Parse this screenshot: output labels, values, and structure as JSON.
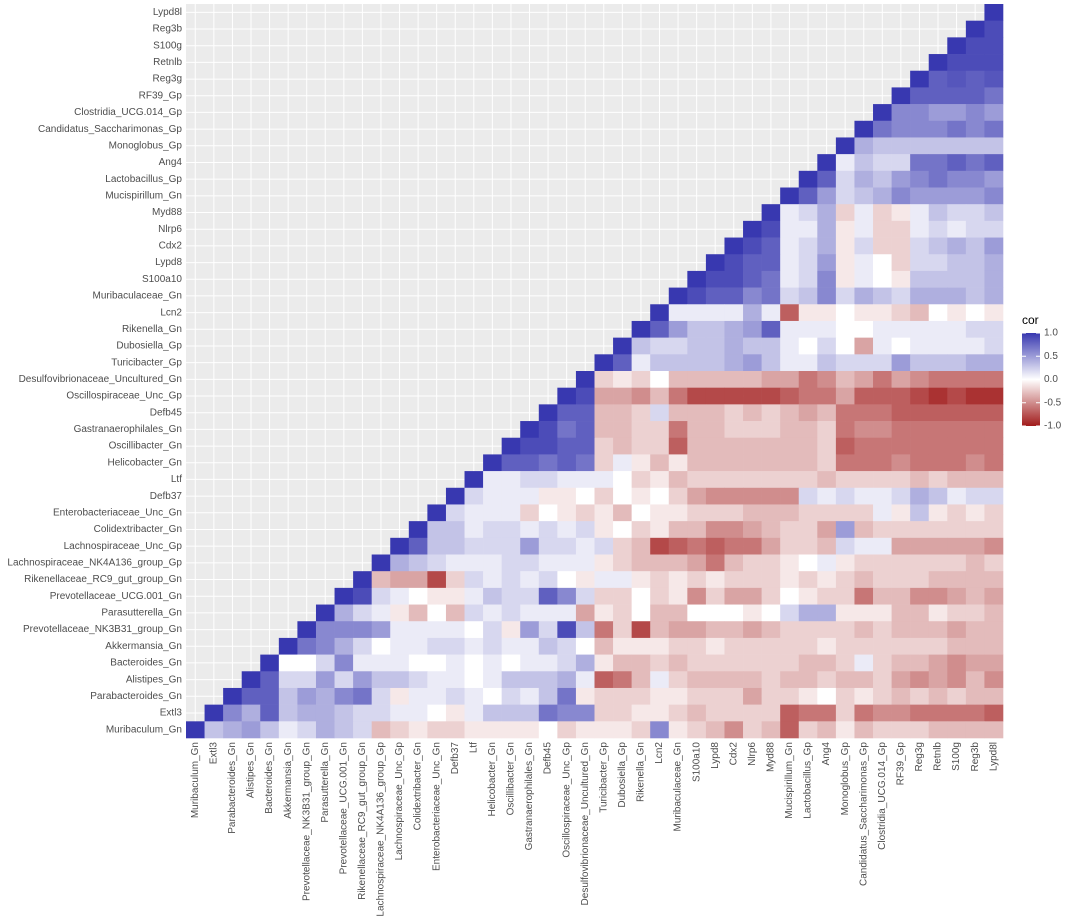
{
  "chart_data": {
    "type": "heatmap",
    "legend_title": "cor",
    "colors": {
      "low": "#a11b1b",
      "mid": "#ffffff",
      "high": "#3838b0"
    },
    "zlim": [
      -1,
      1
    ],
    "zticks": [
      {
        "value": -1,
        "label": "-1.0"
      },
      {
        "value": -0.5,
        "label": "-0.5"
      },
      {
        "value": 0,
        "label": "0.0"
      },
      {
        "value": 0.5,
        "label": "0.5"
      },
      {
        "value": 1,
        "label": "1.0"
      }
    ],
    "rows": [
      "Lypd8l",
      "Reg3b",
      "S100g",
      "Retnlb",
      "Reg3g",
      "RF39_Gp",
      "Clostridia_UCG.014_Gp",
      "Candidatus_Saccharimonas_Gp",
      "Monoglobus_Gp",
      "Ang4",
      "Lactobacillus_Gp",
      "Mucispirillum_Gn",
      "Myd88",
      "Nlrp6",
      "Cdx2",
      "Lypd8",
      "S100a10",
      "Muribaculaceae_Gn",
      "Lcn2",
      "Rikenella_Gn",
      "Dubosiella_Gp",
      "Turicibacter_Gp",
      "Desulfovibrionaceae_Uncultured_Gn",
      "Oscillospiraceae_Unc_Gp",
      "Defb45",
      "Gastranaerophilales_Gn",
      "Oscillibacter_Gn",
      "Helicobacter_Gn",
      "Ltf",
      "Defb37",
      "Enterobacteriaceae_Unc_Gn",
      "Colidextribacter_Gn",
      "Lachnospiraceae_Unc_Gp",
      "Lachnospiraceae_NK4A136_group_Gp",
      "Rikenellaceae_RC9_gut_group_Gn",
      "Prevotellaceae_UCG.001_Gn",
      "Parasutterella_Gn",
      "Prevotellaceae_NK3B31_group_Gn",
      "Akkermansia_Gn",
      "Bacteroides_Gn",
      "Alistipes_Gn",
      "Parabacteroides_Gn",
      "Extl3",
      "Muribaculum_Gn"
    ],
    "columns": [
      "Muribaculum_Gn",
      "Extl3",
      "Parabacteroides_Gn",
      "Alistipes_Gn",
      "Bacteroides_Gn",
      "Akkermansia_Gn",
      "Prevotellaceae_NK3B31_group_Gn",
      "Parasutterella_Gn",
      "Prevotellaceae_UCG.001_Gn",
      "Rikenellaceae_RC9_gut_group_Gn",
      "Lachnospiraceae_NK4A136_group_Gp",
      "Lachnospiraceae_Unc_Gp",
      "Colidextribacter_Gn",
      "Enterobacteriaceae_Unc_Gn",
      "Defb37",
      "Ltf",
      "Helicobacter_Gn",
      "Oscillibacter_Gn",
      "Gastranaerophilales_Gn",
      "Defb45",
      "Oscillospiraceae_Unc_Gp",
      "Desulfovibrionaceae_Uncultured_Gn",
      "Turicibacter_Gp",
      "Dubosiella_Gp",
      "Rikenella_Gn",
      "Lcn2",
      "Muribaculaceae_Gn",
      "S100a10",
      "Lypd8",
      "Cdx2",
      "Nlrp6",
      "Myd88",
      "Mucispirillum_Gn",
      "Lactobacillus_Gp",
      "Ang4",
      "Monoglobus_Gp",
      "Candidatus_Saccharimonas_Gp",
      "Clostridia_UCG.014_Gp",
      "RF39_Gp",
      "Reg3g",
      "Retnlb",
      "S100g",
      "Reg3b",
      "Lypd8l"
    ],
    "values": [
      [
        1
      ],
      [
        1,
        0.9
      ],
      [
        1,
        0.9,
        0.9
      ],
      [
        1,
        0.9,
        0.9,
        0.9
      ],
      [
        1,
        0.8,
        0.85,
        0.8,
        0.85
      ],
      [
        1,
        0.8,
        0.8,
        0.8,
        0.8,
        0.7
      ],
      [
        1,
        0.6,
        0.6,
        0.5,
        0.5,
        0.6,
        0.5
      ],
      [
        1,
        0.7,
        0.6,
        0.6,
        0.6,
        0.7,
        0.6,
        0.7
      ],
      [
        1,
        0.4,
        0.3,
        0.3,
        0.3,
        0.3,
        0.3,
        0.3,
        0.3
      ],
      [
        1,
        0.1,
        0.3,
        0.2,
        0.2,
        0.7,
        0.7,
        0.8,
        0.7,
        0.8
      ],
      [
        1,
        0.8,
        0.2,
        0.4,
        0.3,
        0.5,
        0.6,
        0.7,
        0.6,
        0.6,
        0.5
      ],
      [
        1,
        0.8,
        0.5,
        0.2,
        0.3,
        0.4,
        0.6,
        0.5,
        0.5,
        0.5,
        0.5,
        0.6
      ],
      [
        1,
        0.1,
        0.2,
        0.4,
        -0.2,
        0.1,
        -0.2,
        -0.1,
        0.1,
        0.3,
        0.2,
        0.2,
        0.3
      ],
      [
        1,
        0.9,
        0.1,
        0.1,
        0.4,
        -0.1,
        0.1,
        -0.2,
        -0.2,
        0.1,
        0.2,
        0.1,
        0.2,
        0.2
      ],
      [
        1,
        0.9,
        0.8,
        0.1,
        0.2,
        0.4,
        -0.1,
        0.2,
        -0.2,
        -0.2,
        0.2,
        0.3,
        0.4,
        0.3,
        0.5
      ],
      [
        1,
        0.9,
        0.8,
        0.8,
        0.1,
        0.2,
        0.5,
        -0.1,
        0.1,
        0,
        -0.2,
        0.2,
        0.2,
        0.3,
        0.3,
        0.4
      ],
      [
        1,
        0.9,
        0.9,
        0.8,
        0.7,
        0.1,
        0.2,
        0.6,
        -0.1,
        0.1,
        0,
        -0.1,
        0.3,
        0.3,
        0.3,
        0.3,
        0.4
      ],
      [
        1,
        0.9,
        0.8,
        0.8,
        0.6,
        0.7,
        0.2,
        0.3,
        0.6,
        0.2,
        0.4,
        0.3,
        0.2,
        0.4,
        0.4,
        0.4,
        0.3,
        0.4
      ],
      [
        1,
        0.1,
        0.1,
        0.1,
        0.1,
        0.4,
        0.1,
        -0.7,
        -0.1,
        -0.1,
        0,
        -0.1,
        -0.1,
        -0.2,
        -0.3,
        0,
        -0.1,
        0,
        -0.1
      ],
      [
        1,
        0.8,
        0.5,
        0.3,
        0.3,
        0.4,
        0.5,
        0.8,
        0.1,
        0.1,
        0.1,
        0,
        0,
        0.1,
        0.1,
        0.1,
        0.1,
        0.1,
        0.2,
        0.2
      ],
      [
        1,
        0.3,
        0.2,
        0.2,
        0.3,
        0.3,
        0.4,
        0.3,
        0.3,
        0.1,
        0,
        0.2,
        0,
        -0.4,
        0.1,
        0,
        0.1,
        0.1,
        0.1,
        0.1,
        0.2
      ],
      [
        1,
        0.8,
        0.1,
        0.3,
        0.3,
        0.3,
        0.3,
        0.4,
        0.5,
        0.3,
        0.1,
        0.1,
        0.3,
        0.2,
        0.2,
        0.2,
        0.5,
        0.3,
        0.3,
        0.3,
        0.4,
        0.4
      ],
      [
        1,
        -0.2,
        -0.1,
        -0.2,
        0,
        -0.3,
        -0.3,
        -0.3,
        -0.3,
        -0.3,
        -0.4,
        -0.4,
        -0.6,
        -0.5,
        -0.3,
        -0.4,
        -0.6,
        -0.4,
        -0.5,
        -0.6,
        -0.6,
        -0.6,
        -0.6
      ],
      [
        1,
        0.9,
        -0.4,
        -0.4,
        -0.5,
        -0.3,
        -0.6,
        -0.8,
        -0.8,
        -0.8,
        -0.8,
        -0.8,
        -0.7,
        -0.6,
        -0.6,
        -0.4,
        -0.7,
        -0.7,
        -0.7,
        -0.8,
        -0.9,
        -0.8,
        -0.9,
        -0.9
      ],
      [
        1,
        0.8,
        0.8,
        -0.3,
        -0.3,
        -0.2,
        0.2,
        -0.3,
        -0.3,
        -0.3,
        -0.2,
        -0.3,
        -0.2,
        -0.3,
        -0.4,
        -0.3,
        -0.6,
        -0.6,
        -0.6,
        -0.7,
        -0.7,
        -0.7,
        -0.7,
        -0.7,
        -0.7
      ],
      [
        1,
        0.9,
        0.7,
        0.8,
        -0.3,
        -0.3,
        -0.2,
        -0.2,
        -0.6,
        -0.3,
        -0.3,
        -0.2,
        -0.2,
        -0.2,
        -0.3,
        -0.3,
        -0.2,
        -0.6,
        -0.5,
        -0.5,
        -0.6,
        -0.6,
        -0.6,
        -0.6,
        -0.6,
        -0.6
      ],
      [
        1,
        0.9,
        0.9,
        0.8,
        0.8,
        -0.2,
        -0.3,
        -0.2,
        -0.2,
        -0.7,
        -0.3,
        -0.3,
        -0.3,
        -0.3,
        -0.3,
        -0.3,
        -0.3,
        -0.2,
        -0.7,
        -0.6,
        -0.6,
        -0.6,
        -0.6,
        -0.6,
        -0.6,
        -0.6,
        -0.6
      ],
      [
        1,
        0.8,
        0.8,
        0.7,
        0.8,
        0.7,
        -0.2,
        0.1,
        -0.1,
        -0.3,
        -0.1,
        -0.3,
        -0.3,
        -0.3,
        -0.3,
        -0.3,
        -0.3,
        -0.3,
        -0.2,
        -0.6,
        -0.6,
        -0.6,
        -0.5,
        -0.6,
        -0.6,
        -0.6,
        -0.5,
        -0.6
      ],
      [
        1,
        0.1,
        0.1,
        0.2,
        0.2,
        0.1,
        0.1,
        0.1,
        0,
        -0.2,
        -0.1,
        -0.3,
        -0.2,
        -0.2,
        -0.2,
        -0.2,
        -0.2,
        -0.2,
        -0.2,
        -0.3,
        -0.2,
        -0.2,
        -0.2,
        -0.2,
        -0.3,
        -0.2,
        -0.3,
        -0.3,
        -0.3
      ],
      [
        1,
        0.2,
        0.1,
        0.1,
        0.1,
        -0.1,
        -0.1,
        0,
        -0.2,
        0,
        -0.1,
        0,
        -0.2,
        -0.4,
        -0.5,
        -0.5,
        -0.5,
        -0.5,
        -0.5,
        0.2,
        0.1,
        0.2,
        0.1,
        0.1,
        0.2,
        0.4,
        0.3,
        0.1,
        0.2,
        0.2
      ],
      [
        1,
        0.2,
        0.1,
        0.1,
        0.1,
        -0.2,
        0,
        -0.1,
        -0.2,
        -0.1,
        -0.3,
        0,
        -0.1,
        -0.1,
        -0.2,
        -0.2,
        -0.2,
        -0.3,
        -0.3,
        -0.3,
        -0.2,
        -0.2,
        -0.2,
        -0.2,
        0.1,
        -0.1,
        0.3,
        -0.1,
        -0.2,
        -0.1,
        -0.2
      ],
      [
        1,
        0.3,
        0.3,
        0.1,
        0.2,
        0.2,
        0.1,
        0.2,
        0.1,
        0.2,
        -0.1,
        0,
        -0.2,
        -0.1,
        -0.3,
        -0.3,
        -0.5,
        -0.5,
        -0.4,
        -0.3,
        -0.2,
        -0.2,
        -0.4,
        0.5,
        -0.3,
        -0.2,
        -0.2,
        -0.2,
        -0.2,
        -0.2,
        -0.2,
        -0.2
      ],
      [
        1,
        0.8,
        0.3,
        0.3,
        0.2,
        0.2,
        0.2,
        0.5,
        0.2,
        0.2,
        0.1,
        0.2,
        -0.2,
        -0.3,
        -0.8,
        -0.7,
        -0.6,
        -0.7,
        -0.6,
        -0.6,
        -0.4,
        -0.2,
        -0.2,
        -0.3,
        0.2,
        0.1,
        0.1,
        -0.4,
        -0.4,
        -0.4,
        -0.4,
        -0.4,
        -0.5
      ],
      [
        1,
        0.4,
        0.3,
        0.2,
        0.1,
        0.1,
        0.1,
        0.2,
        0.2,
        0.1,
        0.1,
        0.1,
        -0.1,
        -0.2,
        -0.3,
        -0.3,
        -0.3,
        -0.4,
        -0.6,
        -0.3,
        -0.2,
        -0.2,
        -0.1,
        0,
        0.1,
        -0.1,
        -0.2,
        -0.2,
        -0.2,
        -0.2,
        -0.2,
        -0.2,
        -0.3,
        -0.2
      ],
      [
        1,
        -0.3,
        -0.4,
        -0.4,
        -0.8,
        -0.2,
        0.2,
        0.1,
        0.2,
        0.1,
        0.2,
        0,
        -0.1,
        0.1,
        0.1,
        -0.1,
        -0.2,
        -0.1,
        -0.2,
        -0.1,
        -0.2,
        -0.2,
        -0.2,
        -0.1,
        -0.2,
        -0.1,
        -0.2,
        -0.3,
        -0.2,
        -0.2,
        -0.2,
        -0.3,
        -0.3,
        -0.3,
        -0.3
      ],
      [
        1,
        0.9,
        0.2,
        0.1,
        0,
        -0.1,
        -0.1,
        0.1,
        0.3,
        0.2,
        0.2,
        0.8,
        0.6,
        0.2,
        -0.2,
        -0.2,
        0,
        -0.2,
        -0.1,
        -0.5,
        -0.2,
        -0.4,
        -0.4,
        -0.2,
        0,
        -0.1,
        -0.2,
        -0.2,
        -0.6,
        -0.3,
        -0.3,
        -0.5,
        -0.5,
        -0.4,
        -0.3,
        -0.4
      ],
      [
        1,
        0.4,
        0.2,
        0.1,
        -0.1,
        -0.3,
        0,
        -0.3,
        0.2,
        0.1,
        0.2,
        0.1,
        0.1,
        0.1,
        -0.4,
        -0.1,
        -0.2,
        0,
        -0.3,
        -0.3,
        0,
        0,
        0,
        -0.1,
        0,
        0.2,
        0.4,
        0.4,
        -0.1,
        -0.1,
        -0.1,
        -0.3,
        -0.3,
        -0.1,
        -0.2,
        -0.2,
        -0.3
      ],
      [
        1,
        0.6,
        0.6,
        0.6,
        0.5,
        0.1,
        0.1,
        0.1,
        0.1,
        0,
        0.2,
        -0.1,
        0.5,
        0.2,
        0.9,
        0.3,
        -0.6,
        -0.2,
        -0.8,
        -0.3,
        -0.4,
        -0.4,
        -0.3,
        -0.3,
        -0.4,
        -0.3,
        -0.2,
        -0.2,
        -0.2,
        -0.2,
        -0.3,
        -0.2,
        -0.3,
        -0.3,
        -0.3,
        -0.4,
        -0.3,
        -0.3
      ],
      [
        1,
        0.7,
        0.6,
        0.4,
        0.2,
        0,
        0.1,
        0.1,
        0.2,
        0.2,
        0.1,
        0.2,
        0.1,
        0.1,
        0.3,
        0.2,
        0,
        -0.3,
        -0.1,
        -0.1,
        -0.1,
        -0.2,
        -0.2,
        -0.1,
        -0.2,
        -0.2,
        -0.2,
        -0.2,
        -0.2,
        -0.1,
        -0.2,
        -0.2,
        -0.2,
        -0.2,
        -0.2,
        -0.2,
        -0.3,
        -0.3,
        -0.3
      ],
      [
        1,
        0,
        0,
        0.2,
        0.6,
        0.1,
        0.1,
        0.1,
        0,
        0,
        0.1,
        0,
        0.1,
        0,
        0.1,
        0.1,
        0.2,
        0.4,
        -0.1,
        -0.3,
        -0.3,
        -0.2,
        -0.3,
        -0.2,
        -0.2,
        -0.2,
        -0.2,
        -0.2,
        -0.2,
        -0.3,
        -0.3,
        -0.2,
        0.1,
        -0.2,
        -0.3,
        -0.3,
        -0.4,
        -0.5,
        -0.4,
        -0.4
      ],
      [
        1,
        0.8,
        0.2,
        0.2,
        0.5,
        0.2,
        0.5,
        0.3,
        0.3,
        0.2,
        0.1,
        0.1,
        0,
        0.1,
        0.3,
        0.3,
        0.3,
        0.4,
        0.1,
        -0.7,
        -0.6,
        -0.3,
        0.1,
        -0.2,
        -0.3,
        -0.3,
        -0.3,
        -0.3,
        -0.2,
        -0.3,
        -0.3,
        -0.2,
        -0.3,
        -0.3,
        -0.2,
        -0.4,
        -0.5,
        -0.4,
        -0.5,
        -0.3,
        -0.5
      ],
      [
        1,
        0.8,
        0.8,
        0.3,
        0.5,
        0.4,
        0.6,
        0.7,
        0.2,
        -0.1,
        0.1,
        0.1,
        0.2,
        0.1,
        0,
        0.2,
        0.1,
        0.3,
        0.7,
        -0.1,
        -0.2,
        -0.2,
        -0.2,
        -0.1,
        -0.1,
        -0.2,
        -0.2,
        -0.2,
        -0.4,
        -0.2,
        -0.2,
        -0.1,
        0,
        -0.2,
        -0.1,
        -0.2,
        -0.3,
        -0.2,
        -0.3,
        -0.2,
        -0.3,
        -0.3
      ],
      [
        1,
        0.6,
        0.4,
        0.8,
        0.3,
        0.4,
        0.4,
        0.3,
        0.2,
        0.2,
        0.1,
        0.1,
        0,
        -0.1,
        0.1,
        0.3,
        0.3,
        0.3,
        0.7,
        0.6,
        0.6,
        -0.2,
        -0.2,
        -0.1,
        -0.1,
        -0.2,
        -0.3,
        -0.2,
        -0.2,
        -0.2,
        -0.2,
        -0.7,
        -0.6,
        -0.6,
        -0.2,
        -0.6,
        -0.5,
        -0.5,
        -0.6,
        -0.6,
        -0.6,
        -0.6,
        -0.7
      ],
      [
        1,
        0.3,
        0.4,
        0.5,
        0.3,
        0.1,
        0.2,
        0.4,
        0.3,
        0.2,
        -0.3,
        -0.2,
        -0.1,
        -0.2,
        -0.2,
        -0.1,
        -0.1,
        -0.1,
        -0.1,
        0,
        -0.2,
        -0.1,
        -0.1,
        -0.1,
        -0.2,
        0.6,
        -0.1,
        -0.2,
        -0.3,
        -0.5,
        -0.2,
        -0.3,
        -0.7,
        -0.2,
        -0.3,
        -0.1,
        -0.3,
        -0.2,
        -0.2,
        -0.2,
        -0.3,
        -0.3,
        -0.3,
        -0.3
      ]
    ]
  }
}
